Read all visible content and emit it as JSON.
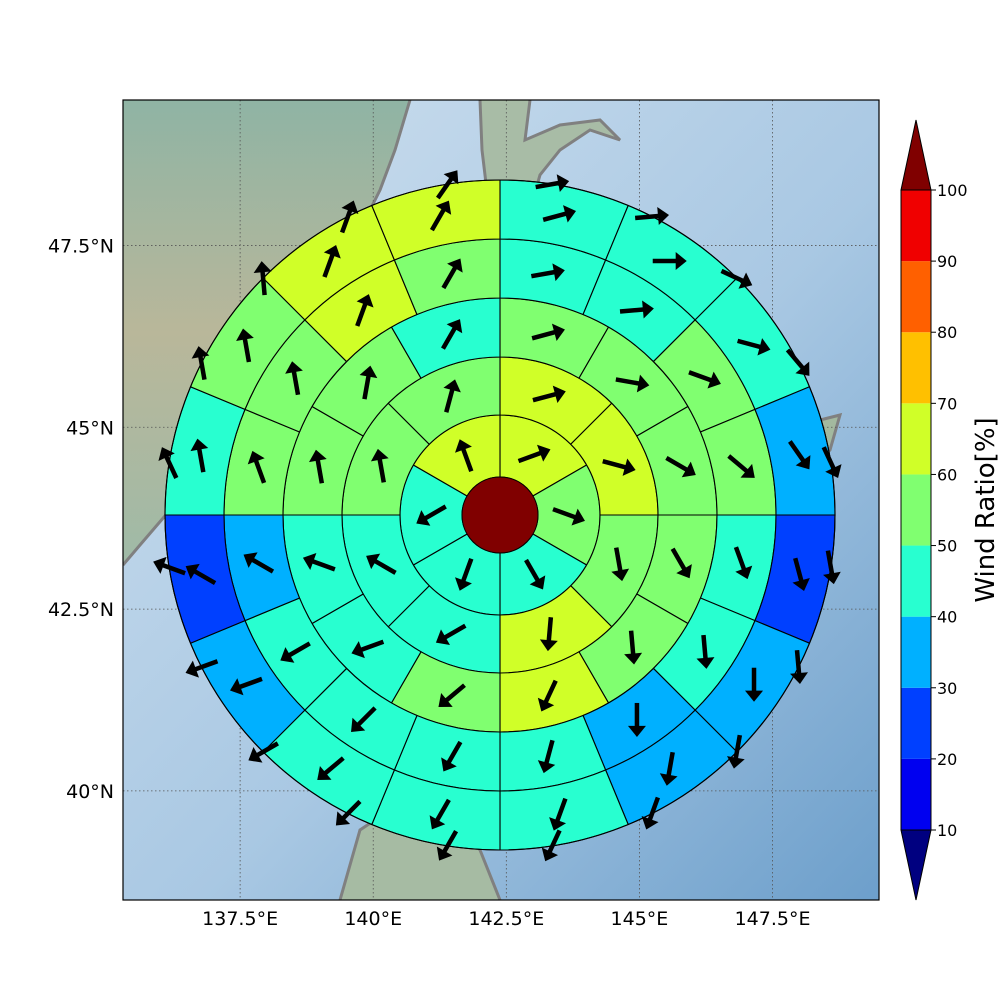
{
  "map": {
    "x_ticks": [
      "137.5°E",
      "140°E",
      "142.5°E",
      "145°E",
      "147.5°E"
    ],
    "y_ticks": [
      "47.5°N",
      "45°N",
      "42.5°N",
      "40°N"
    ],
    "x_tick_values": [
      137.5,
      140,
      142.5,
      145,
      147.5
    ],
    "y_tick_values": [
      47.5,
      45,
      42.5,
      40
    ],
    "lon_range": [
      135.3,
      149.5
    ],
    "lat_range": [
      38.5,
      49.5
    ],
    "gridlines": true,
    "background": "shaded-relief"
  },
  "colorbar": {
    "label": "Wind Ratio[%]",
    "ticks": [
      "10",
      "20",
      "30",
      "40",
      "50",
      "60",
      "70",
      "80",
      "90",
      "100"
    ],
    "bins": [
      {
        "from": 10,
        "to": 20,
        "color": "#0000f0"
      },
      {
        "from": 20,
        "to": 30,
        "color": "#0040ff"
      },
      {
        "from": 30,
        "to": 40,
        "color": "#00b0ff"
      },
      {
        "from": 40,
        "to": 50,
        "color": "#28ffd0"
      },
      {
        "from": 50,
        "to": 60,
        "color": "#80ff70"
      },
      {
        "from": 60,
        "to": 70,
        "color": "#d0ff28"
      },
      {
        "from": 70,
        "to": 80,
        "color": "#ffc000"
      },
      {
        "from": 80,
        "to": 90,
        "color": "#ff6000"
      },
      {
        "from": 90,
        "to": 100,
        "color": "#f00000"
      }
    ],
    "under_color": "#000080",
    "over_color": "#800000"
  },
  "chart_data": {
    "type": "polar-sector-map",
    "center_value": 100,
    "rings": [
      {
        "sectors": 6,
        "first_angle": 0,
        "values": [
          60,
          50,
          40,
          40,
          40,
          60
        ],
        "wind_dirs": [
          70,
          110,
          150,
          200,
          240,
          340
        ]
      },
      {
        "sectors": 8,
        "first_angle": 0,
        "values": [
          60,
          60,
          50,
          60,
          40,
          40,
          50,
          50
        ],
        "wind_dirs": [
          75,
          105,
          170,
          185,
          240,
          300,
          350,
          15
        ]
      },
      {
        "sectors": 12,
        "first_angle": 0,
        "values": [
          50,
          50,
          50,
          50,
          50,
          60,
          50,
          40,
          40,
          50,
          50,
          40
        ],
        "wind_dirs": [
          75,
          100,
          120,
          150,
          175,
          205,
          230,
          250,
          290,
          350,
          10,
          30
        ]
      },
      {
        "sectors": 16,
        "first_angle": 0,
        "values": [
          40,
          40,
          50,
          50,
          40,
          40,
          30,
          40,
          40,
          40,
          40,
          30,
          50,
          50,
          60,
          50
        ],
        "wind_dirs": [
          80,
          85,
          110,
          130,
          160,
          175,
          180,
          195,
          210,
          225,
          240,
          300,
          340,
          350,
          20,
          30
        ]
      },
      {
        "sectors": 16,
        "first_angle": 0,
        "values": [
          40,
          40,
          40,
          30,
          20,
          30,
          30,
          40,
          40,
          40,
          30,
          20,
          40,
          50,
          60,
          60
        ],
        "wind_dirs": [
          75,
          90,
          105,
          145,
          165,
          180,
          190,
          200,
          210,
          230,
          250,
          300,
          350,
          350,
          20,
          30
        ]
      },
      {
        "sectors": 20,
        "first_angle": 0,
        "values": [
          50,
          30,
          30,
          40,
          30,
          10,
          20,
          30,
          40,
          40,
          40,
          40,
          30,
          20,
          20,
          30,
          40,
          50,
          70,
          60
        ],
        "wind_dirs": [
          80,
          85,
          115,
          140,
          155,
          170,
          175,
          190,
          200,
          205,
          210,
          225,
          240,
          250,
          290,
          335,
          350,
          355,
          20,
          35
        ]
      }
    ]
  }
}
